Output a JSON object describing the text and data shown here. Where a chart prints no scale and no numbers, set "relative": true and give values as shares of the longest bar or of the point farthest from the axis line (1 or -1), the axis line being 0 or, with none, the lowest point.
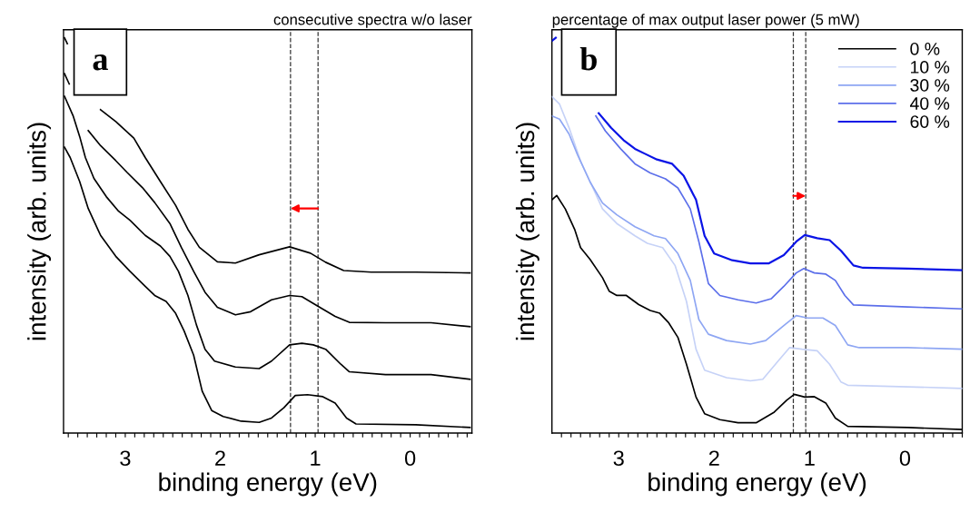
{
  "chart_data": [
    {
      "type": "line",
      "title": "consecutive spectra w/o laser",
      "xlabel": "binding energy (eV)",
      "ylabel": "intensity (arb. units)",
      "relative": true,
      "annotations": [
        "a"
      ],
      "xlim": [
        3.65,
        -0.65
      ],
      "xticks": [
        {
          "value": 3.6,
          "label": null
        },
        {
          "value": 3.5,
          "label": null
        },
        {
          "value": 3.4,
          "label": null
        },
        {
          "value": 3.3,
          "label": null
        },
        {
          "value": 3.2,
          "label": null
        },
        {
          "value": 3.1,
          "label": null
        },
        3,
        {
          "value": 2.9,
          "label": null
        },
        {
          "value": 2.8,
          "label": null
        },
        {
          "value": 2.7,
          "label": null
        },
        {
          "value": 2.6,
          "label": null
        },
        {
          "value": 2.5,
          "label": null
        },
        {
          "value": 2.4,
          "label": null
        },
        {
          "value": 2.3,
          "label": null
        },
        {
          "value": 2.2,
          "label": null
        },
        {
          "value": 2.1,
          "label": null
        },
        2,
        {
          "value": 1.9,
          "label": null
        },
        {
          "value": 1.8,
          "label": null
        },
        {
          "value": 1.7,
          "label": null
        },
        {
          "value": 1.6,
          "label": null
        },
        {
          "value": 1.5,
          "label": null
        },
        {
          "value": 1.4,
          "label": null
        },
        {
          "value": 1.3,
          "label": null
        },
        {
          "value": 1.2,
          "label": null
        },
        {
          "value": 1.1,
          "label": null
        },
        1,
        {
          "value": 0.9,
          "label": null
        },
        {
          "value": 0.8,
          "label": null
        },
        {
          "value": 0.7,
          "label": null
        },
        {
          "value": 0.6,
          "label": null
        },
        {
          "value": 0.5,
          "label": null
        },
        {
          "value": 0.4,
          "label": null
        },
        {
          "value": 0.3,
          "label": null
        },
        {
          "value": 0.2,
          "label": null
        },
        {
          "value": 0.1,
          "label": null
        },
        0,
        {
          "value": -0.1,
          "label": null
        },
        {
          "value": -0.2,
          "label": null
        },
        {
          "value": -0.3,
          "label": null
        },
        {
          "value": -0.4,
          "label": null
        },
        {
          "value": -0.5,
          "label": null
        },
        {
          "value": -0.6,
          "label": null
        }
      ],
      "tick_labels": "x",
      "grid": false,
      "legend": false,
      "ref_lines": [
        {
          "axis": "x",
          "value": 0.97,
          "color": "#333333",
          "line_style": "dashed"
        },
        {
          "axis": "x",
          "value": 1.26,
          "color": "#333333",
          "line_style": "dashed"
        }
      ],
      "series": [
        {
          "color": "#000000",
          "x": [
            3.64,
            3.61,
            3.45,
            3.26,
            3.1,
            2.91,
            2.79,
            2.63,
            2.47,
            2.34,
            2.22,
            2.03,
            1.84,
            1.59,
            1.27,
            1.05,
            0.89,
            0.7,
            0.41,
            -0.06,
            -0.63
          ],
          "values": [
            1.0,
            0.985,
            null,
            0.818,
            0.788,
            0.746,
            0.697,
            0.636,
            0.576,
            0.515,
            0.47,
            0.433,
            0.43,
            0.451,
            0.471,
            0.455,
            0.432,
            0.411,
            0.407,
            0.407,
            0.405
          ]
        },
        {
          "color": "#000000",
          "x": [
            3.64,
            3.59,
            3.5,
            3.39,
            3.26,
            3.1,
            2.98,
            2.82,
            2.69,
            2.53,
            2.41,
            2.28,
            2.16,
            2.03,
            1.84,
            1.68,
            1.46,
            1.27,
            1.14,
            0.98,
            0.79,
            0.64,
            0.26,
            -0.22,
            -0.63
          ],
          "values": [
            0.909,
            0.883,
            null,
            0.765,
            0.727,
            0.689,
            0.659,
            0.621,
            0.583,
            0.53,
            0.47,
            0.409,
            0.356,
            0.318,
            0.299,
            0.307,
            0.337,
            0.348,
            0.345,
            0.322,
            0.295,
            0.28,
            0.279,
            0.279,
            0.269
          ]
        },
        {
          "color": "#000000",
          "x": [
            3.64,
            3.55,
            3.48,
            3.42,
            3.33,
            3.2,
            3.07,
            2.95,
            2.79,
            2.63,
            2.53,
            2.44,
            2.34,
            2.25,
            2.16,
            2.06,
            1.84,
            1.59,
            1.46,
            1.27,
            1.14,
            1.02,
            0.89,
            0.73,
            0.64,
            0.26,
            -0.22,
            -0.63
          ],
          "values": [
            0.852,
            0.803,
            0.75,
            0.697,
            0.644,
            0.598,
            0.561,
            0.538,
            0.5,
            0.473,
            0.447,
            0.409,
            0.348,
            0.273,
            0.212,
            0.182,
            0.167,
            0.163,
            0.182,
            0.223,
            0.227,
            0.223,
            0.212,
            0.174,
            0.155,
            0.148,
            0.148,
            0.136
          ]
        },
        {
          "color": "#000000",
          "x": [
            3.64,
            3.58,
            3.48,
            3.39,
            3.26,
            3.1,
            2.95,
            2.79,
            2.69,
            2.57,
            2.47,
            2.38,
            2.28,
            2.19,
            2.09,
            1.97,
            1.78,
            1.59,
            1.46,
            1.33,
            1.21,
            1.08,
            0.92,
            0.79,
            0.67,
            0.57,
            -0.06,
            -0.63
          ],
          "values": [
            0.723,
            0.697,
            0.636,
            0.568,
            0.5,
            0.447,
            0.409,
            0.371,
            0.348,
            0.333,
            0.303,
            0.258,
            0.197,
            0.106,
            0.057,
            0.042,
            0.03,
            0.027,
            0.038,
            0.064,
            0.095,
            0.097,
            0.092,
            0.076,
            0.038,
            0.023,
            0.021,
            0.014
          ]
        }
      ]
    },
    {
      "type": "line",
      "title": "percentage of max output laser power (5 mW)",
      "xlabel": "binding energy (eV)",
      "ylabel": "intensity (arb. units)",
      "relative": true,
      "annotations": [
        "b"
      ],
      "xlim": [
        3.7,
        -0.6
      ],
      "xticks": [
        {
          "value": 3.6,
          "label": null
        },
        {
          "value": 3.5,
          "label": null
        },
        {
          "value": 3.4,
          "label": null
        },
        {
          "value": 3.3,
          "label": null
        },
        {
          "value": 3.2,
          "label": null
        },
        {
          "value": 3.1,
          "label": null
        },
        3,
        {
          "value": 2.9,
          "label": null
        },
        {
          "value": 2.8,
          "label": null
        },
        {
          "value": 2.7,
          "label": null
        },
        {
          "value": 2.6,
          "label": null
        },
        {
          "value": 2.5,
          "label": null
        },
        {
          "value": 2.4,
          "label": null
        },
        {
          "value": 2.3,
          "label": null
        },
        {
          "value": 2.2,
          "label": null
        },
        {
          "value": 2.1,
          "label": null
        },
        2,
        {
          "value": 1.9,
          "label": null
        },
        {
          "value": 1.8,
          "label": null
        },
        {
          "value": 1.7,
          "label": null
        },
        {
          "value": 1.6,
          "label": null
        },
        {
          "value": 1.5,
          "label": null
        },
        {
          "value": 1.4,
          "label": null
        },
        {
          "value": 1.3,
          "label": null
        },
        {
          "value": 1.2,
          "label": null
        },
        {
          "value": 1.1,
          "label": null
        },
        1,
        {
          "value": 0.9,
          "label": null
        },
        {
          "value": 0.8,
          "label": null
        },
        {
          "value": 0.7,
          "label": null
        },
        {
          "value": 0.6,
          "label": null
        },
        {
          "value": 0.5,
          "label": null
        },
        {
          "value": 0.4,
          "label": null
        },
        {
          "value": 0.3,
          "label": null
        },
        {
          "value": 0.2,
          "label": null
        },
        {
          "value": 0.1,
          "label": null
        },
        0,
        {
          "value": -0.1,
          "label": null
        },
        {
          "value": -0.2,
          "label": null
        },
        {
          "value": -0.3,
          "label": null
        },
        {
          "value": -0.4,
          "label": null
        },
        {
          "value": -0.5,
          "label": null
        },
        {
          "value": -0.6,
          "label": null
        }
      ],
      "tick_labels": "x",
      "grid": false,
      "legend": "top right",
      "ref_lines": [
        {
          "axis": "x",
          "value": 1.17,
          "color": "#333333",
          "line_style": "dashed"
        },
        {
          "axis": "x",
          "value": 1.04,
          "color": "#333333",
          "line_style": "dashed"
        }
      ],
      "series": [
        {
          "name": "0 %",
          "color": "#000000",
          "x": [
            3.7,
            3.65,
            3.56,
            3.46,
            3.4,
            3.3,
            3.17,
            3.1,
            3.02,
            2.92,
            2.79,
            2.67,
            2.57,
            2.48,
            2.38,
            2.29,
            2.19,
            2.1,
            1.94,
            1.75,
            1.56,
            1.37,
            1.24,
            1.16,
            1.05,
            0.95,
            0.83,
            0.73,
            0.6,
            -0.03,
            -0.6
          ],
          "values": [
            0.59,
            0.601,
            0.567,
            0.514,
            0.469,
            0.439,
            0.393,
            0.359,
            0.348,
            0.348,
            0.325,
            0.31,
            0.303,
            0.28,
            0.242,
            0.174,
            0.091,
            0.049,
            0.034,
            0.026,
            0.026,
            0.053,
            0.083,
            0.098,
            0.091,
            0.092,
            0.076,
            0.038,
            0.017,
            0.014,
            0.009
          ]
        },
        {
          "name": "10 %",
          "color": "#c6d2f7",
          "x": [
            3.7,
            3.62,
            3.52,
            3.4,
            3.27,
            3.17,
            3.02,
            2.83,
            2.7,
            2.54,
            2.41,
            2.29,
            2.19,
            2.1,
            1.87,
            1.62,
            1.49,
            1.33,
            1.21,
            1.08,
            0.92,
            0.79,
            0.67,
            0.6,
            -0.03,
            -0.6
          ],
          "values": [
            0.851,
            0.832,
            0.772,
            0.688,
            0.62,
            0.567,
            0.53,
            0.499,
            0.48,
            0.469,
            0.424,
            0.333,
            0.212,
            0.159,
            0.14,
            0.132,
            0.136,
            0.182,
            0.216,
            0.212,
            0.208,
            0.174,
            0.129,
            0.121,
            0.117,
            0.113
          ]
        },
        {
          "name": "30 %",
          "color": "#8ea6f3",
          "x": [
            3.7,
            3.62,
            3.52,
            3.43,
            3.3,
            3.17,
            3.02,
            2.83,
            2.63,
            2.51,
            2.38,
            2.25,
            2.16,
            2.06,
            1.87,
            1.62,
            1.46,
            1.27,
            1.14,
            1.02,
            0.86,
            0.73,
            0.6,
            0.48,
            -0.03,
            -0.6
          ],
          "values": [
            0.802,
            0.794,
            0.756,
            0.703,
            0.635,
            0.582,
            0.552,
            0.522,
            0.499,
            0.492,
            0.454,
            0.386,
            0.287,
            0.25,
            0.234,
            0.225,
            0.234,
            0.272,
            0.297,
            0.291,
            0.291,
            0.272,
            0.223,
            0.216,
            0.216,
            0.212
          ]
        },
        {
          "name": "40 %",
          "color": "#5c6fea",
          "x": [
            3.24,
            3.14,
            2.98,
            2.83,
            2.67,
            2.51,
            2.38,
            2.25,
            2.16,
            2.06,
            1.94,
            1.75,
            1.56,
            1.4,
            1.27,
            1.14,
            1.06,
            0.95,
            0.83,
            0.73,
            0.63,
            0.54,
            -0.03,
            -0.6
          ],
          "values": [
            0.802,
            0.764,
            0.719,
            0.681,
            0.658,
            0.643,
            0.62,
            0.567,
            0.484,
            0.378,
            0.348,
            0.337,
            0.329,
            0.34,
            0.371,
            0.405,
            0.416,
            0.405,
            0.402,
            0.386,
            0.348,
            0.324,
            0.319,
            0.314
          ]
        },
        {
          "name": "60 %",
          "color": "#0a14e6",
          "x": [
            3.7,
            3.66,
            3.4,
            3.21,
            3.08,
            2.95,
            2.83,
            2.73,
            2.6,
            2.44,
            2.32,
            2.19,
            2.1,
            2.0,
            1.81,
            1.62,
            1.43,
            1.27,
            1.14,
            1.05,
            0.92,
            0.79,
            0.67,
            0.54,
            0.44,
            -0.03,
            -0.6
          ],
          "values": [
            0.992,
            1.0,
            null,
            0.809,
            0.772,
            0.741,
            0.719,
            0.707,
            0.692,
            0.681,
            0.651,
            0.59,
            0.499,
            0.454,
            0.437,
            0.429,
            0.429,
            0.45,
            0.484,
            0.501,
            0.493,
            0.488,
            0.461,
            0.424,
            0.418,
            0.416,
            0.412
          ]
        }
      ]
    }
  ]
}
